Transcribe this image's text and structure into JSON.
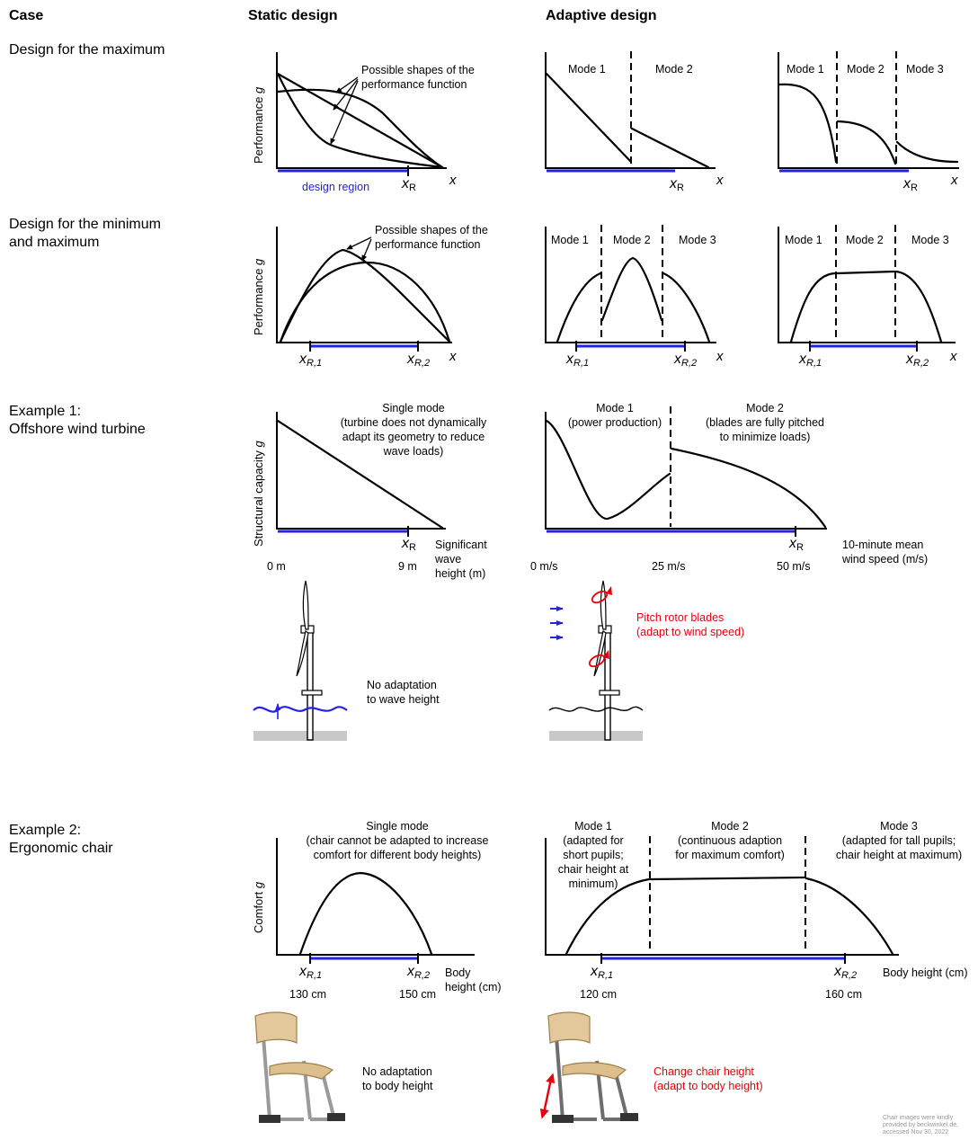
{
  "headers": {
    "case": "Case",
    "static": "Static design",
    "adaptive": "Adaptive design"
  },
  "rows": {
    "r1": {
      "line1": "Design for the maximum",
      "line2": ""
    },
    "r2": {
      "line1": "Design for the minimum",
      "line2": "and maximum"
    },
    "r3": {
      "line1": "Example 1:",
      "line2": "Offshore wind turbine"
    },
    "r4": {
      "line1": "Example 2:",
      "line2": "Ergonomic chair"
    }
  },
  "axes": {
    "performance": "Performance",
    "structural": "Structural capacity",
    "comfort": "Comfort",
    "g": "g",
    "x": "x",
    "xR": "x",
    "R": "R",
    "R1": "R,1",
    "R2": "R,2"
  },
  "labels": {
    "possible_1": "Possible shapes of the",
    "possible_2": "performance function",
    "design_region": "design region",
    "mode1": "Mode 1",
    "mode2": "Mode 2",
    "mode3": "Mode 3"
  },
  "turbine": {
    "single_1": "Single mode",
    "single_2": "(turbine does not dynamically",
    "single_3": "adapt its geometry to reduce",
    "single_4": "wave loads)",
    "m1_1": "Mode 1",
    "m1_2": "(power production)",
    "m2_1": "Mode 2",
    "m2_2": "(blades are fully pitched",
    "m2_3": "to minimize loads)",
    "tick_0m": "0 m",
    "tick_9m": "9 m",
    "wave_1": "Significant",
    "wave_2": "wave",
    "wave_3": "height (m)",
    "tick_0ms": "0 m/s",
    "tick_25ms": "25 m/s",
    "tick_50ms": "50 m/s",
    "wind_1": "10-minute mean",
    "wind_2": "wind speed (m/s)",
    "noadapt_1": "No adaptation",
    "noadapt_2": "to wave height",
    "pitch_1": "Pitch rotor blades",
    "pitch_2": "(adapt to wind speed)"
  },
  "chair": {
    "single_1": "Single mode",
    "single_2": "(chair cannot be adapted to increase",
    "single_3": "comfort for different body heights)",
    "m1_1": "Mode 1",
    "m1_2": "(adapted for",
    "m1_3": "short pupils;",
    "m1_4": "chair height at",
    "m1_5": "minimum)",
    "m2_1": "Mode 2",
    "m2_2": "(continuous adaption",
    "m2_3": "for maximum comfort)",
    "m3_1": "Mode 3",
    "m3_2": "(adapted for tall pupils;",
    "m3_3": "chair height at maximum)",
    "tick_130": "130 cm",
    "tick_150": "150 cm",
    "body_1": "Body",
    "body_2": "height (cm)",
    "tick_120": "120 cm",
    "tick_160": "160 cm",
    "body_full": "Body height (cm)",
    "noadapt_1": "No adaptation",
    "noadapt_2": "to body height",
    "change_1": "Change chair height",
    "change_2": "(adapt to body height)"
  },
  "credit": {
    "line1": "Chair images were kindly",
    "line2": "provided by beckwinkel.de,",
    "line3": "accessed Nov 30, 2022"
  },
  "colors": {
    "region": "#2323e6",
    "adapt": "#e8000b",
    "ground": "#c8c8c8"
  }
}
